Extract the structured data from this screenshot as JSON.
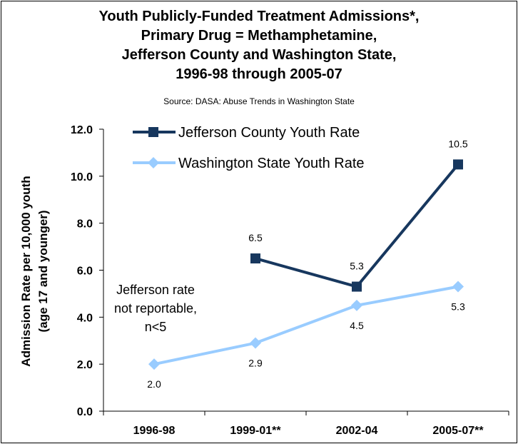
{
  "chart_data": {
    "type": "line",
    "title_lines": [
      "Youth Publicly-Funded Treatment Admissions*,",
      "Primary Drug = Methamphetamine,",
      "Jefferson County and Washington State,",
      "1996-98 through 2005-07"
    ],
    "subtitle": "Source: DASA: Abuse Trends in Washington State",
    "ylabel_lines": [
      "Admission Rate per 10,000 youth",
      "(age 17 and younger)"
    ],
    "categories": [
      "1996-98",
      "1999-01**",
      "2002-04",
      "2005-07**"
    ],
    "ylim": [
      0,
      12
    ],
    "yticks": [
      "0.0",
      "2.0",
      "4.0",
      "6.0",
      "8.0",
      "10.0",
      "12.0"
    ],
    "series": [
      {
        "name": "Jefferson County Youth Rate",
        "color": "#17375E",
        "marker": "square",
        "values": [
          null,
          6.5,
          5.3,
          10.5
        ],
        "labels": [
          null,
          "6.5",
          "5.3",
          "10.5"
        ]
      },
      {
        "name": "Washington State Youth Rate",
        "color": "#99CCFF",
        "marker": "diamond",
        "values": [
          2.0,
          2.9,
          4.5,
          5.3
        ],
        "labels": [
          "2.0",
          "2.9",
          "4.5",
          "5.3"
        ]
      }
    ],
    "annotation_lines": [
      "Jefferson rate",
      "not reportable,",
      "n<5"
    ],
    "legend_position": "top"
  }
}
